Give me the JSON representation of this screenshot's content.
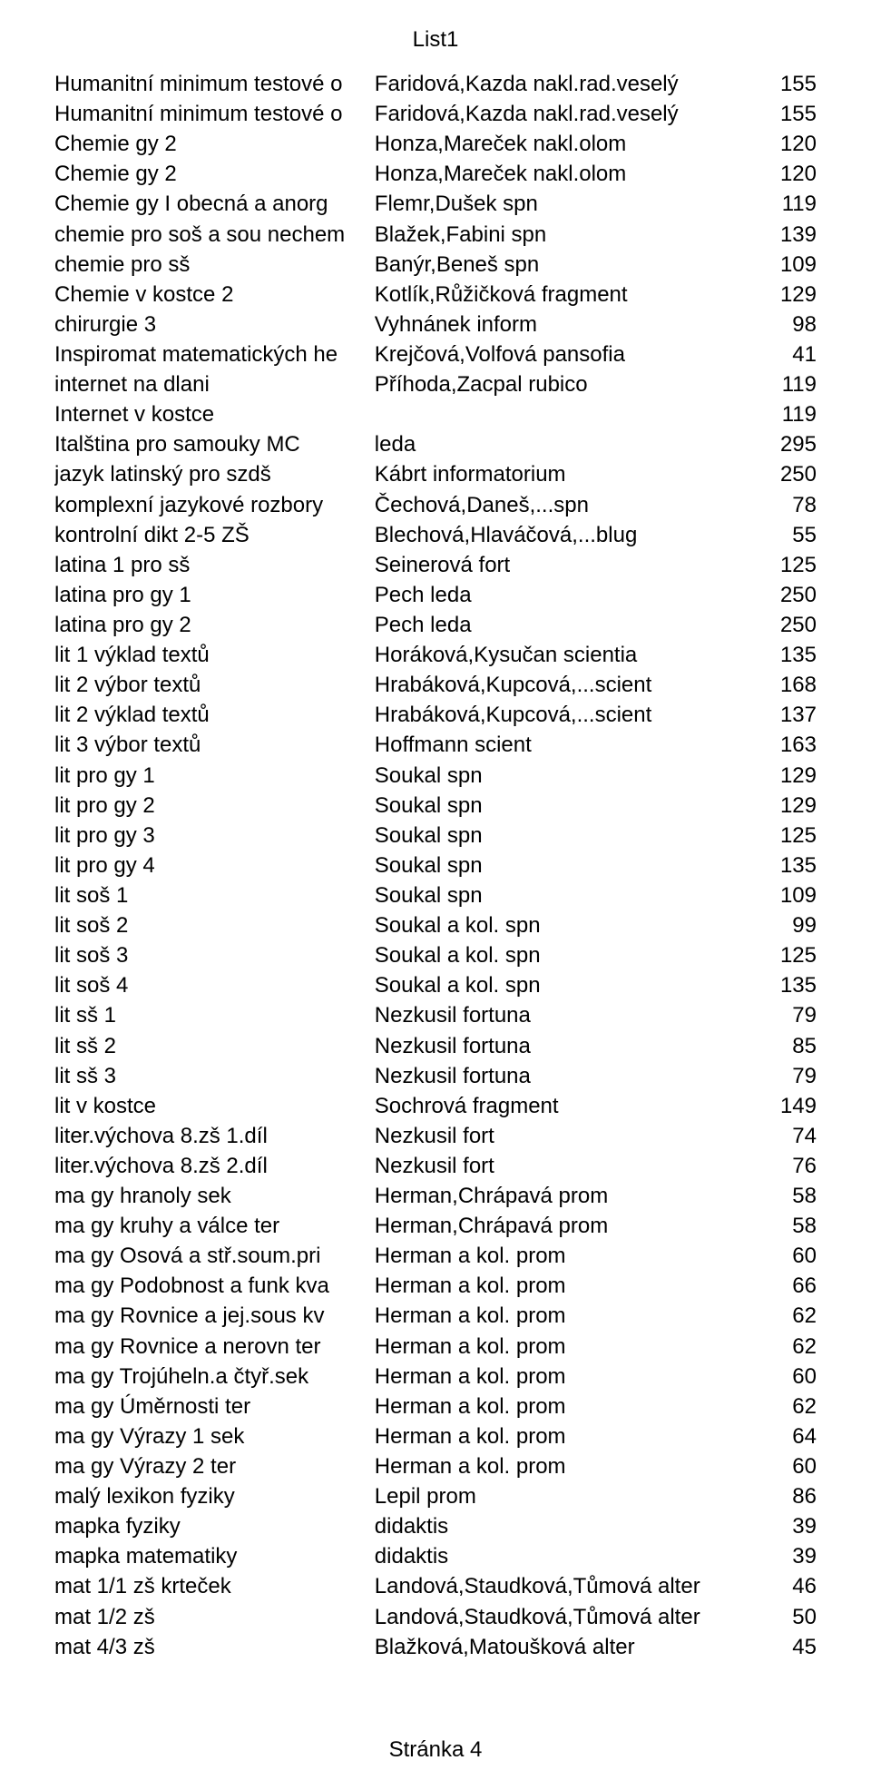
{
  "header": {
    "title": "List1"
  },
  "footer": {
    "page_label": "Stránka 4"
  },
  "rows": [
    {
      "title": "Humanitní minimum testové o",
      "author": "Faridová,Kazda nakl.rad.veselý",
      "price": "155"
    },
    {
      "title": "Humanitní minimum testové o",
      "author": "Faridová,Kazda nakl.rad.veselý",
      "price": "155"
    },
    {
      "title": "Chemie gy 2",
      "author": "Honza,Mareček nakl.olom",
      "price": "120"
    },
    {
      "title": "Chemie gy 2",
      "author": "Honza,Mareček nakl.olom",
      "price": "120"
    },
    {
      "title": "Chemie gy I obecná a anorg",
      "author": "Flemr,Dušek spn",
      "price": "119"
    },
    {
      "title": "chemie pro soš a sou nechem",
      "author": "Blažek,Fabini spn",
      "price": "139"
    },
    {
      "title": "chemie pro sš",
      "author": "Banýr,Beneš spn",
      "price": "109"
    },
    {
      "title": "Chemie v kostce 2",
      "author": "Kotlík,Růžičková fragment",
      "price": "129"
    },
    {
      "title": "chirurgie 3",
      "author": "Vyhnánek inform",
      "price": "98"
    },
    {
      "title": "Inspiromat matematických he",
      "author": "Krejčová,Volfová pansofia",
      "price": "41"
    },
    {
      "title": "internet na dlani",
      "author": "Příhoda,Zacpal rubico",
      "price": "119"
    },
    {
      "title": "Internet v kostce",
      "author": "",
      "price": "119"
    },
    {
      "title": "Italština pro samouky MC",
      "author": "leda",
      "price": "295"
    },
    {
      "title": "jazyk latinský pro szdš",
      "author": "Kábrt informatorium",
      "price": "250"
    },
    {
      "title": "komplexní jazykové rozbory",
      "author": "Čechová,Daneš,...spn",
      "price": "78"
    },
    {
      "title": "kontrolní dikt 2-5 ZŠ",
      "author": "Blechová,Hlaváčová,...blug",
      "price": "55"
    },
    {
      "title": "latina 1 pro sš",
      "author": "Seinerová fort",
      "price": "125"
    },
    {
      "title": "latina pro gy 1",
      "author": "Pech leda",
      "price": "250"
    },
    {
      "title": "latina pro gy 2",
      "author": "Pech leda",
      "price": "250"
    },
    {
      "title": "lit 1 výklad textů",
      "author": "Horáková,Kysučan scientia",
      "price": "135"
    },
    {
      "title": "lit 2 výbor textů",
      "author": "Hrabáková,Kupcová,...scient",
      "price": "168"
    },
    {
      "title": "lit 2 výklad textů",
      "author": "Hrabáková,Kupcová,...scient",
      "price": "137"
    },
    {
      "title": "lit 3 výbor textů",
      "author": "Hoffmann scient",
      "price": "163"
    },
    {
      "title": "lit pro gy 1",
      "author": "Soukal spn",
      "price": "129"
    },
    {
      "title": "lit pro gy 2",
      "author": "Soukal spn",
      "price": "129"
    },
    {
      "title": "lit pro gy 3",
      "author": "Soukal spn",
      "price": "125"
    },
    {
      "title": "lit pro gy 4",
      "author": "Soukal spn",
      "price": "135"
    },
    {
      "title": "lit soš 1",
      "author": "Soukal spn",
      "price": "109"
    },
    {
      "title": "lit soš 2",
      "author": "Soukal a kol. spn",
      "price": "99"
    },
    {
      "title": "lit soš 3",
      "author": "Soukal a kol. spn",
      "price": "125"
    },
    {
      "title": "lit soš 4",
      "author": "Soukal a kol. spn",
      "price": "135"
    },
    {
      "title": "lit sš 1",
      "author": "Nezkusil fortuna",
      "price": "79"
    },
    {
      "title": "lit sš 2",
      "author": "Nezkusil fortuna",
      "price": "85"
    },
    {
      "title": "lit sš 3",
      "author": "Nezkusil fortuna",
      "price": "79"
    },
    {
      "title": "lit v kostce",
      "author": "Sochrová fragment",
      "price": "149"
    },
    {
      "title": "liter.výchova 8.zš 1.díl",
      "author": "Nezkusil fort",
      "price": "74"
    },
    {
      "title": "liter.výchova 8.zš 2.díl",
      "author": "Nezkusil fort",
      "price": "76"
    },
    {
      "title": "ma gy hranoly sek",
      "author": "Herman,Chrápavá prom",
      "price": "58"
    },
    {
      "title": "ma gy kruhy a válce ter",
      "author": "Herman,Chrápavá prom",
      "price": "58"
    },
    {
      "title": "ma gy Osová a stř.soum.pri",
      "author": "Herman a kol. prom",
      "price": "60"
    },
    {
      "title": "ma gy Podobnost a funk kva",
      "author": "Herman a kol. prom",
      "price": "66"
    },
    {
      "title": "ma gy Rovnice a jej.sous kv",
      "author": "Herman a kol. prom",
      "price": "62"
    },
    {
      "title": "ma gy Rovnice a nerovn ter",
      "author": "Herman a kol. prom",
      "price": "62"
    },
    {
      "title": "ma gy Trojúheln.a čtyř.sek",
      "author": "Herman a kol. prom",
      "price": "60"
    },
    {
      "title": "ma gy Úměrnosti ter",
      "author": "Herman a kol. prom",
      "price": "62"
    },
    {
      "title": "ma gy Výrazy 1 sek",
      "author": "Herman a kol. prom",
      "price": "64"
    },
    {
      "title": "ma gy Výrazy 2 ter",
      "author": "Herman a kol. prom",
      "price": "60"
    },
    {
      "title": "malý lexikon fyziky",
      "author": "Lepil prom",
      "price": "86"
    },
    {
      "title": "mapka fyziky",
      "author": "didaktis",
      "price": "39"
    },
    {
      "title": "mapka matematiky",
      "author": "didaktis",
      "price": "39"
    },
    {
      "title": "mat 1/1 zš  krteček",
      "author": "Landová,Staudková,Tůmová alter",
      "price": "46"
    },
    {
      "title": "mat 1/2 zš",
      "author": "Landová,Staudková,Tůmová alter",
      "price": "50"
    },
    {
      "title": "mat 4/3 zš",
      "author": "Blažková,Matoušková alter",
      "price": "45"
    }
  ]
}
